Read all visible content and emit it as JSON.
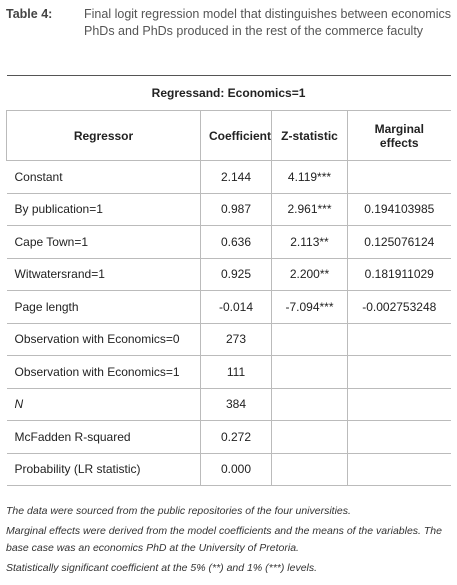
{
  "caption": {
    "label": "Table 4:",
    "text": "Final logit regression model that distinguishes between economics PhDs and PhDs produced in the rest of the commerce faculty"
  },
  "table": {
    "regressand": "Regressand: Economics=1",
    "headers": [
      "Regressor",
      "Coefficient",
      "Z-statistic",
      "Marginal effects"
    ],
    "rows": [
      [
        "Constant",
        "2.144",
        "4.119***"
      ],
      [
        "By publication=1",
        "0.987",
        "2.961***",
        "0.194103985"
      ],
      [
        "Cape Town=1",
        "0.636",
        "2.113**",
        "0.125076124"
      ],
      [
        "Witwatersrand=1",
        "0.925",
        "2.200**",
        "0.181911029"
      ],
      [
        "Page length",
        "-0.014",
        "-7.094***",
        "-0.002753248"
      ],
      [
        "Observation with Economics=0",
        "273"
      ],
      [
        "Observation with Economics=1",
        "111"
      ],
      [
        "N",
        "384"
      ],
      [
        "McFadden R-squared",
        "0.272"
      ],
      [
        "Probability (LR statistic)",
        "0.000"
      ]
    ]
  },
  "notes": [
    "The data were sourced from the public repositories of the four universities.",
    "Marginal effects were derived from the model coefficients and the means of the variables. The base case was an economics PhD at the University of Pretoria.",
    "Statistically significant coefficient at the 5% (**) and 1% (***) levels."
  ]
}
